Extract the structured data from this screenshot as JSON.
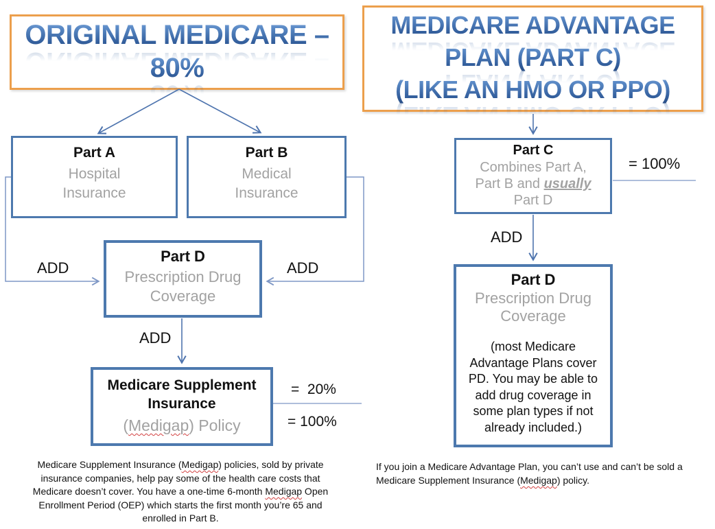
{
  "colors": {
    "box_border_blue": "#4d79ae",
    "title_border_orange": "#EC9F4C",
    "wordart_blue": "#35619f",
    "gray_text": "#a2a2a2",
    "connector_dark": "#4e74ae",
    "connector_light": "#7e97c5",
    "separator_line": "#93a9cf",
    "squiggle_red": "#d23f3f"
  },
  "left": {
    "title_line1": "ORIGINAL MEDICARE –",
    "title_line2": "80%",
    "part_a_title": "Part A",
    "part_a_sub": "Hospital Insurance",
    "part_b_title": "Part B",
    "part_b_sub": "Medical Insurance",
    "part_d_title": "Part D",
    "part_d_sub": "Prescription Drug Coverage",
    "add_left": "ADD",
    "add_right": "ADD",
    "add_bottom": "ADD",
    "med_supp_title": "Medicare Supplement Insurance",
    "med_supp_policy": [
      {
        "text": "("
      },
      {
        "text": "Medigap",
        "wavy": true
      },
      {
        "text": ") Policy"
      }
    ],
    "eq_20": "=  20%",
    "eq_100": "= 100%",
    "footnote": [
      {
        "text": "Medicare Supplement Insurance ("
      },
      {
        "text": "Medigap",
        "wavy": true
      },
      {
        "text": ") policies, sold by private insurance companies, help pay some of the health care costs that Medicare doesn’t cover.  You have a one-time 6-month "
      },
      {
        "text": "Medigap",
        "wavy": true
      },
      {
        "text": " Open Enrollment Period (OEP) which starts the first month you’re 65 and enrolled in Part B."
      }
    ]
  },
  "right": {
    "title_line1": "MEDICARE ADVANTAGE",
    "title_line2": "PLAN (PART C)",
    "title_line3": "(LIKE AN HMO OR PPO)",
    "part_c_title": "Part C",
    "part_c_line1": "Combines Part A,",
    "part_c_line2": [
      {
        "text": "Part B and "
      },
      {
        "text": "usually",
        "em": true
      }
    ],
    "part_c_line3": "Part D",
    "eq_100": "= 100%",
    "add_label": "ADD",
    "part_d_title": "Part D",
    "part_d_sub": "Prescription Drug Coverage",
    "part_d_note": "(most Medicare Advantage Plans cover PD.  You may be able to add drug coverage in some plan types if not already included.)",
    "footnote": [
      {
        "text": "If you join a Medicare Advantage Plan, you can’t use and can’t be sold a Medicare Supplement Insurance ("
      },
      {
        "text": "Medigap",
        "wavy": true
      },
      {
        "text": ") policy."
      }
    ]
  }
}
